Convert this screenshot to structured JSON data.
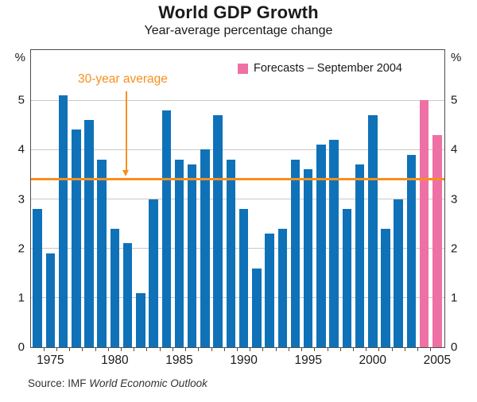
{
  "header": {
    "title": "World GDP Growth",
    "subtitle": "Year-average percentage change"
  },
  "legend": {
    "label": "Forecasts – September 2004"
  },
  "annotation": {
    "label": "30-year average"
  },
  "source": {
    "prefix": "Source: IMF ",
    "italic": "World Economic Outlook"
  },
  "chart_data": {
    "type": "bar",
    "title": "World GDP Growth",
    "subtitle": "Year-average percentage change",
    "xlabel": "",
    "ylabel": "%",
    "unit_label": "%",
    "ylim": [
      0,
      6
    ],
    "yticks": [
      0,
      1,
      2,
      3,
      4,
      5
    ],
    "grid": true,
    "years": [
      1974,
      1975,
      1976,
      1977,
      1978,
      1979,
      1980,
      1981,
      1982,
      1983,
      1984,
      1985,
      1986,
      1987,
      1988,
      1989,
      1990,
      1991,
      1992,
      1993,
      1994,
      1995,
      1996,
      1997,
      1998,
      1999,
      2000,
      2001,
      2002,
      2003,
      2004,
      2005
    ],
    "values": [
      2.8,
      1.9,
      5.1,
      4.4,
      4.6,
      3.8,
      2.4,
      2.1,
      1.1,
      3.0,
      4.8,
      3.8,
      3.7,
      4.0,
      4.7,
      3.8,
      2.8,
      1.6,
      2.3,
      2.4,
      3.8,
      3.6,
      4.1,
      4.2,
      2.8,
      3.7,
      4.7,
      2.4,
      3.0,
      3.9,
      5.0,
      4.3
    ],
    "forecast_years": [
      2004,
      2005
    ],
    "average_line": {
      "label": "30-year average",
      "value": 3.4
    },
    "legend_entries": [
      {
        "label": "Forecasts – September 2004",
        "color": "#ef70a5"
      }
    ],
    "x_tick_labels": [
      1975,
      1980,
      1985,
      1990,
      1995,
      2000,
      2005
    ],
    "colors": {
      "bar": "#0f72b8",
      "forecast_bar": "#ef70a5",
      "average_line": "#f78f1e",
      "gridline": "#c9c9c9",
      "frame": "#4d4d4d"
    }
  }
}
